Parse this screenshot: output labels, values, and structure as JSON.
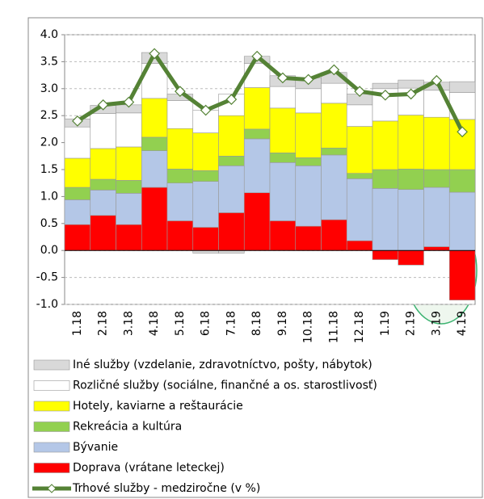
{
  "chart_data": {
    "type": "bar",
    "categories": [
      "1.18",
      "2.18",
      "3.18",
      "4.18",
      "5.18",
      "6.18",
      "7.18",
      "8.18",
      "9.18",
      "10.18",
      "11.18",
      "12.18",
      "1.19",
      "2.19",
      "3.19",
      "4.19"
    ],
    "stacked": true,
    "series": [
      {
        "name": "Doprava (vrátane leteckej)",
        "color": "#ff0000",
        "values": [
          0.48,
          0.65,
          0.48,
          1.17,
          0.55,
          0.43,
          0.7,
          1.07,
          0.55,
          0.45,
          0.57,
          0.18,
          -0.17,
          -0.27,
          0.07,
          -0.92
        ]
      },
      {
        "name": "Bývanie",
        "color": "#b4c7e7",
        "values": [
          0.46,
          0.47,
          0.58,
          0.68,
          0.7,
          0.85,
          0.87,
          1.0,
          1.08,
          1.12,
          1.2,
          1.15,
          1.15,
          1.13,
          1.1,
          1.08
        ]
      },
      {
        "name": "Rekreácia a kultúra",
        "color": "#92d050",
        "values": [
          0.23,
          0.2,
          0.24,
          0.25,
          0.26,
          0.2,
          0.18,
          0.18,
          0.18,
          0.15,
          0.13,
          0.1,
          0.35,
          0.38,
          0.33,
          0.42
        ]
      },
      {
        "name": "Hotely, kaviarne a reštaurácie",
        "color": "#ffff00",
        "values": [
          0.54,
          0.57,
          0.62,
          0.72,
          0.75,
          0.7,
          0.75,
          0.77,
          0.83,
          0.83,
          0.83,
          0.87,
          0.9,
          1.0,
          0.97,
          0.93
        ]
      },
      {
        "name": "Rozličné služby (sociálne, finančné a os. starostlivosť)",
        "color": "#ffffff",
        "values": [
          0.58,
          0.65,
          0.63,
          0.65,
          0.52,
          0.42,
          0.4,
          0.45,
          0.4,
          0.45,
          0.37,
          0.4,
          0.6,
          0.5,
          0.5,
          0.5
        ]
      },
      {
        "name": "Iné služby (vzdelanie, zdravotníctvo, pošty, nábytok)",
        "color": "#d9d9d9",
        "values": [
          0.15,
          0.15,
          0.15,
          0.2,
          0.12,
          -0.05,
          -0.05,
          0.13,
          0.2,
          0.2,
          0.2,
          0.2,
          0.1,
          0.15,
          0.15,
          0.2
        ]
      },
      {
        "name": "Trhové služby - medziročne (v %)",
        "type": "line",
        "color": "#548235",
        "values": [
          2.4,
          2.7,
          2.75,
          3.65,
          2.95,
          2.6,
          2.8,
          3.6,
          3.2,
          3.17,
          3.35,
          2.95,
          2.88,
          2.9,
          3.15,
          2.2
        ]
      }
    ],
    "ylim": [
      -1.0,
      4.0
    ],
    "yticks": [
      {
        "value": -1.0,
        "label": "-1.0"
      },
      {
        "value": -0.5,
        "label": "-0.5"
      },
      {
        "value": 0,
        "label": "0.0"
      },
      {
        "value": 0.5,
        "label": "0.5"
      },
      {
        "value": 1.0,
        "label": "1.0"
      },
      {
        "value": 1.5,
        "label": "1.5"
      },
      {
        "value": 2.0,
        "label": "2.0"
      },
      {
        "value": 2.5,
        "label": "2.5"
      },
      {
        "value": 3.0,
        "label": "3.0"
      },
      {
        "value": 3.5,
        "label": "3.5"
      },
      {
        "value": 4.0,
        "label": "4.0"
      }
    ],
    "grid": true
  }
}
